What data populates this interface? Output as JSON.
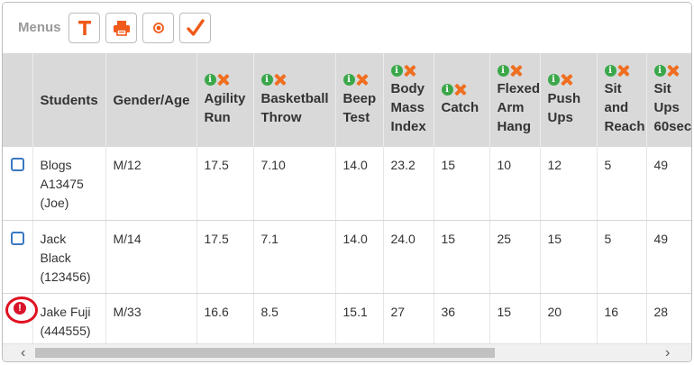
{
  "menubar": {
    "label": "Menus",
    "buttons": [
      {
        "name": "text-format-button",
        "icon": "text-t-icon"
      },
      {
        "name": "print-button",
        "icon": "printer-icon"
      },
      {
        "name": "record-button",
        "icon": "record-icon"
      },
      {
        "name": "check-button",
        "icon": "checkmark-icon"
      }
    ],
    "accent_color": "#ef5a1a"
  },
  "table": {
    "headers": {
      "students": "Students",
      "gender_age": "Gender/Age",
      "tests": [
        [
          "Agility",
          "Run"
        ],
        [
          "Basketball",
          "Throw"
        ],
        [
          "Beep",
          "Test"
        ],
        [
          "Body",
          "Mass",
          "Index"
        ],
        [
          "Catch"
        ],
        [
          "Flexed",
          "Arm",
          "Hang"
        ],
        [
          "Push",
          "Ups"
        ],
        [
          "Sit",
          "and",
          "Reach"
        ],
        [
          "Sit",
          "Ups",
          "60sec"
        ]
      ]
    },
    "rows": [
      {
        "status": "checkbox",
        "name": [
          "Blogs",
          "A13475",
          "(Joe)"
        ],
        "gender_age": "M/12",
        "values": [
          "17.5",
          "7.10",
          "14.0",
          "23.2",
          "15",
          "10",
          "12",
          "5",
          "49"
        ]
      },
      {
        "status": "checkbox",
        "name": [
          "Jack",
          "Black",
          "(123456)"
        ],
        "gender_age": "M/14",
        "values": [
          "17.5",
          "7.1",
          "14.0",
          "24.0",
          "15",
          "25",
          "15",
          "5",
          "49"
        ]
      },
      {
        "status": "warning",
        "name": [
          "Jake Fuji",
          "(444555)"
        ],
        "gender_age": "M/33",
        "values": [
          "16.6",
          "8.5",
          "15.1",
          "27",
          "36",
          "15",
          "20",
          "16",
          "28"
        ]
      }
    ]
  },
  "scrollbar": {
    "left_arrow": "‹",
    "right_arrow": "›"
  }
}
